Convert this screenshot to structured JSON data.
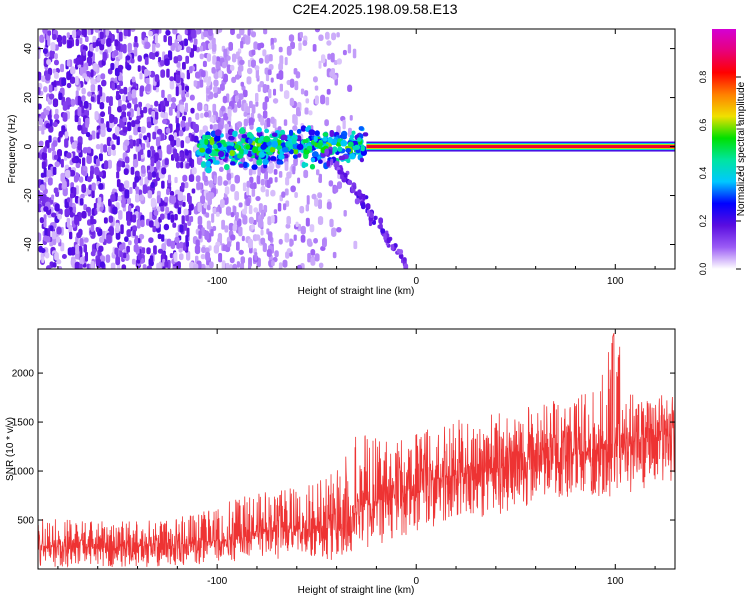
{
  "title": "C2E4.2025.198.09.58.E13",
  "chart_data": [
    {
      "type": "heatmap",
      "title": "C2E4.2025.198.09.58.E13",
      "xlabel": "Height of straight line (km)",
      "ylabel": "Frequency (Hz)",
      "xlim": [
        -190,
        130
      ],
      "ylim": [
        -50,
        48
      ],
      "xticks": [
        -100,
        0,
        100
      ],
      "xtick_labels": [
        "-100",
        "0",
        "100"
      ],
      "yticks": [
        -40,
        -20,
        0,
        20,
        40
      ],
      "ytick_labels": [
        "-40",
        "-20",
        "0",
        "20",
        "40"
      ],
      "colorbar": {
        "label": "Normalized spectral amplitude",
        "range": [
          0,
          1
        ],
        "ticks": [
          0.0,
          0.2,
          0.4,
          0.6,
          0.8
        ],
        "tick_labels": [
          "0.0",
          "0.2",
          "0.4",
          "0.6",
          "0.8"
        ],
        "colormap": [
          "#ffffff",
          "#9b5cf5",
          "#5a0de0",
          "#0000ff",
          "#00c8ff",
          "#00e5a0",
          "#00e000",
          "#f0e000",
          "#ff8000",
          "#ff0000",
          "#e8007a",
          "#d400d4"
        ]
      },
      "features": [
        {
          "name": "noise field",
          "x_range": [
            -190,
            -30
          ],
          "freq_range": [
            -50,
            48
          ],
          "amplitude": 0.1
        },
        {
          "name": "signal band",
          "x_range": [
            -110,
            -25
          ],
          "freq_center": 0,
          "freq_width": 10,
          "amplitude": 0.4
        },
        {
          "name": "tone line",
          "x_range": [
            -25,
            130
          ],
          "freq_center": 0,
          "amplitude": 0.85
        },
        {
          "name": "descending branch",
          "x_start": -45,
          "x_end": -5,
          "freq_start": -2,
          "freq_end": -48,
          "amplitude": 0.15
        }
      ],
      "grid": false,
      "legend": "none"
    },
    {
      "type": "line",
      "xlabel": "Height of straight line (km)",
      "ylabel": "SNR (10 * v/v)",
      "xlim": [
        -190,
        130
      ],
      "ylim": [
        0,
        2450
      ],
      "xticks": [
        -100,
        0,
        100
      ],
      "xtick_labels": [
        "-100",
        "0",
        "100"
      ],
      "yticks": [
        500,
        1000,
        1500,
        2000
      ],
      "ytick_labels": [
        "500",
        "1000",
        "1500",
        "2000"
      ],
      "color": "#ee3333",
      "series": [
        {
          "x": [
            -190,
            -170,
            -150,
            -130,
            -110,
            -100,
            -90,
            -80,
            -70,
            -60,
            -50,
            -40,
            -30,
            -20,
            -10,
            0,
            10,
            20,
            30,
            40,
            50,
            60,
            70,
            80,
            90,
            100,
            110,
            120,
            130
          ],
          "baseline": [
            230,
            225,
            230,
            240,
            260,
            290,
            330,
            370,
            390,
            400,
            410,
            420,
            600,
            700,
            770,
            850,
            920,
            970,
            1000,
            1040,
            1080,
            1110,
            1140,
            1180,
            1210,
            1260,
            1300,
            1370,
            1450
          ],
          "upper": [
            520,
            500,
            500,
            520,
            560,
            640,
            720,
            780,
            820,
            850,
            890,
            1000,
            1450,
            1350,
            1300,
            1400,
            1480,
            1520,
            1560,
            1600,
            1640,
            1680,
            1720,
            1780,
            1820,
            2450,
            1700,
            1760,
            1860
          ],
          "lower": [
            20,
            20,
            20,
            20,
            40,
            60,
            80,
            100,
            100,
            120,
            120,
            80,
            150,
            250,
            300,
            350,
            400,
            450,
            500,
            550,
            600,
            650,
            700,
            750,
            750,
            700,
            800,
            850,
            900
          ]
        }
      ],
      "grid": false,
      "legend": "none"
    }
  ]
}
